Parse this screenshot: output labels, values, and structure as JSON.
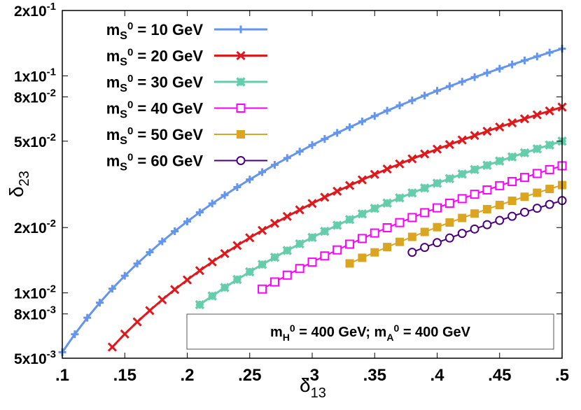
{
  "chart_data": {
    "type": "line",
    "title": "",
    "xlabel": {
      "base": "δ",
      "sub": "13"
    },
    "ylabel": {
      "base": "δ",
      "sub": "23"
    },
    "xlim": [
      0.1,
      0.5
    ],
    "ylim": [
      0.005,
      0.2
    ],
    "yscale": "log",
    "grid": false,
    "legend_position": "top-left",
    "x_ticks": [
      {
        "value": 0.1,
        "label": ".1"
      },
      {
        "value": 0.15,
        "label": ".15"
      },
      {
        "value": 0.2,
        "label": ".2"
      },
      {
        "value": 0.25,
        "label": ".25"
      },
      {
        "value": 0.3,
        "label": ".3"
      },
      {
        "value": 0.35,
        "label": ".35"
      },
      {
        "value": 0.4,
        "label": ".4"
      },
      {
        "value": 0.45,
        "label": ".45"
      },
      {
        "value": 0.5,
        "label": ".5"
      }
    ],
    "y_ticks": [
      {
        "value": 0.2,
        "mantissa": "2x10",
        "exp": "-1"
      },
      {
        "value": 0.1,
        "mantissa": "1x10",
        "exp": "-1"
      },
      {
        "value": 0.08,
        "mantissa": "8x10",
        "exp": "-2"
      },
      {
        "value": 0.05,
        "mantissa": "5x10",
        "exp": "-2"
      },
      {
        "value": 0.02,
        "mantissa": "2x10",
        "exp": "-2"
      },
      {
        "value": 0.01,
        "mantissa": "1x10",
        "exp": "-2"
      },
      {
        "value": 0.008,
        "mantissa": "8x10",
        "exp": "-3"
      },
      {
        "value": 0.005,
        "mantissa": "5x10",
        "exp": "-3"
      }
    ],
    "annotation": {
      "part1_base": "m",
      "part1_sub": "H",
      "part1_sup": "0",
      "part1_rest": " = 400 GeV; ",
      "part2_base": "m",
      "part2_sub": "A",
      "part2_sup": "0",
      "part2_rest": " = 400 GeV"
    },
    "series": [
      {
        "name": "m_S0 = 10 GeV",
        "label": {
          "base": "m",
          "sub": "S",
          "sup": "0",
          "rest": " = 10 GeV"
        },
        "color": "#6495ed",
        "marker": "plus",
        "x_start": 0.1,
        "x_step": 0.01,
        "values": [
          0.00533,
          0.00645,
          0.00768,
          0.00901,
          0.01045,
          0.01199,
          0.01364,
          0.0154,
          0.01727,
          0.01924,
          0.02132,
          0.02351,
          0.0258,
          0.0282,
          0.0307,
          0.0333,
          0.036,
          0.0389,
          0.0418,
          0.0448,
          0.048,
          0.0512,
          0.0546,
          0.058,
          0.0616,
          0.0653,
          0.0691,
          0.073,
          0.077,
          0.0811,
          0.0853,
          0.0896,
          0.094,
          0.0986,
          0.1032,
          0.1079,
          0.1128,
          0.1177,
          0.1228,
          0.128,
          0.1333
        ]
      },
      {
        "name": "m_S0 = 20 GeV",
        "label": {
          "base": "m",
          "sub": "S",
          "sup": "0",
          "rest": " = 20 GeV"
        },
        "color": "#e0181c",
        "marker": "cross",
        "x_start": 0.14,
        "x_step": 0.01,
        "values": [
          0.00563,
          0.00646,
          0.00735,
          0.00829,
          0.0093,
          0.01036,
          0.01148,
          0.01266,
          0.01389,
          0.01518,
          0.01653,
          0.01794,
          0.0194,
          0.02092,
          0.0225,
          0.02414,
          0.02583,
          0.02758,
          0.02939,
          0.03125,
          0.03318,
          0.03516,
          0.0372,
          0.03929,
          0.04144,
          0.04365,
          0.04592,
          0.04824,
          0.05063,
          0.05307,
          0.05556,
          0.05812,
          0.06073,
          0.0634,
          0.06612,
          0.06891,
          0.07175
        ]
      },
      {
        "name": "m_S0 = 30 GeV",
        "label": {
          "base": "m",
          "sub": "S",
          "sup": "0",
          "rest": " = 30 GeV"
        },
        "color": "#66cdaa",
        "marker": "star",
        "x_start": 0.21,
        "x_step": 0.01,
        "values": [
          0.00882,
          0.00968,
          0.01058,
          0.01152,
          0.0125,
          0.01352,
          0.01458,
          0.01568,
          0.01682,
          0.018,
          0.01922,
          0.02048,
          0.02178,
          0.02312,
          0.0245,
          0.02592,
          0.02738,
          0.02888,
          0.03042,
          0.032,
          0.03362,
          0.03528,
          0.03698,
          0.03872,
          0.0405,
          0.04232,
          0.04418,
          0.04608,
          0.04802,
          0.05
        ]
      },
      {
        "name": "m_S0 = 40 GeV",
        "label": {
          "base": "m",
          "sub": "S",
          "sup": "0",
          "rest": " = 40 GeV"
        },
        "color": "#ff00ff",
        "marker": "open-square",
        "x_start": 0.26,
        "x_step": 0.01,
        "values": [
          0.01041,
          0.01123,
          0.01207,
          0.01295,
          0.01386,
          0.0148,
          0.01577,
          0.01677,
          0.0178,
          0.01887,
          0.01996,
          0.02108,
          0.02224,
          0.02342,
          0.02464,
          0.02589,
          0.02717,
          0.02847,
          0.02981,
          0.03119,
          0.03259,
          0.03402,
          0.03548,
          0.03698,
          0.0385
        ]
      },
      {
        "name": "m_S0 = 50 GeV",
        "label": {
          "base": "m",
          "sub": "S",
          "sup": "0",
          "rest": " = 50 GeV"
        },
        "color": "#daa520",
        "marker": "filled-square",
        "x_start": 0.33,
        "x_step": 0.01,
        "values": [
          0.01367,
          0.01451,
          0.01537,
          0.01626,
          0.01718,
          0.01812,
          0.01909,
          0.02008,
          0.0211,
          0.02214,
          0.0232,
          0.0243,
          0.02541,
          0.02656,
          0.02772,
          0.02892,
          0.03013,
          0.03138
        ]
      },
      {
        "name": "m_S0 = 60 GeV",
        "label": {
          "base": "m",
          "sub": "S",
          "sup": "0",
          "rest": " = 60 GeV"
        },
        "color": "#4b0082",
        "marker": "open-circle",
        "x_start": 0.38,
        "x_step": 0.01,
        "values": [
          0.01538,
          0.0162,
          0.01704,
          0.0179,
          0.01879,
          0.01969,
          0.02062,
          0.02157,
          0.02254,
          0.02353,
          0.02454,
          0.02557,
          0.02663
        ]
      }
    ]
  }
}
